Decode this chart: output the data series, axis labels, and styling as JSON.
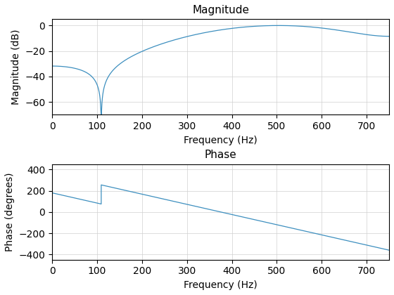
{
  "title_magnitude": "Magnitude",
  "title_phase": "Phase",
  "xlabel": "Frequency (Hz)",
  "ylabel_magnitude": "Magnitude (dB)",
  "ylabel_phase": "Phase (degrees)",
  "line_color": "#3d8fbf",
  "ylim_magnitude": [
    -70,
    5
  ],
  "ylim_phase": [
    -450,
    450
  ],
  "xlim": [
    0,
    750
  ],
  "yticks_magnitude": [
    0,
    -20,
    -40,
    -60
  ],
  "yticks_phase": [
    400,
    200,
    0,
    -200,
    -400
  ],
  "xticks": [
    0,
    100,
    200,
    300,
    400,
    500,
    600,
    700
  ],
  "fs": 1500,
  "figsize": [
    5.6,
    4.2
  ],
  "dpi": 100
}
